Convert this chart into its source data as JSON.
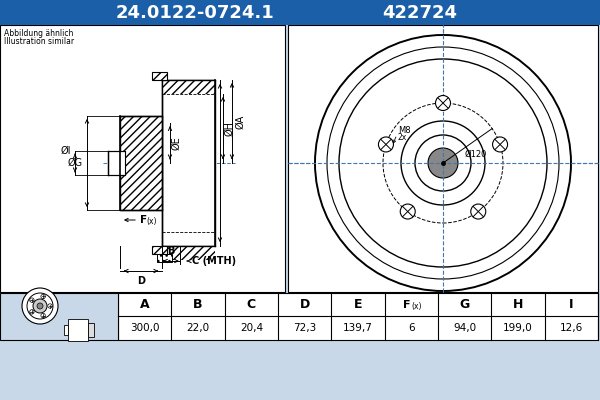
{
  "title_part": "24.0122-0724.1",
  "title_code": "422724",
  "header_bg": "#1a5fa8",
  "header_text_color": "#ffffff",
  "bg_color": "#c8d8e8",
  "drawing_bg": "#ffffff",
  "note_line1": "Abbildung ähnlich",
  "note_line2": "Illustration similar",
  "table_headers": [
    "A",
    "B",
    "C",
    "D",
    "E",
    "F(x)",
    "G",
    "H",
    "I"
  ],
  "table_values": [
    "300,0",
    "22,0",
    "20,4",
    "72,3",
    "139,7",
    "6",
    "94,0",
    "199,0",
    "12,6"
  ],
  "line_color": "#000000",
  "crosshair_color": "#4477aa",
  "hatch_color": "#555555",
  "bg_outer": "#c8d8e8"
}
